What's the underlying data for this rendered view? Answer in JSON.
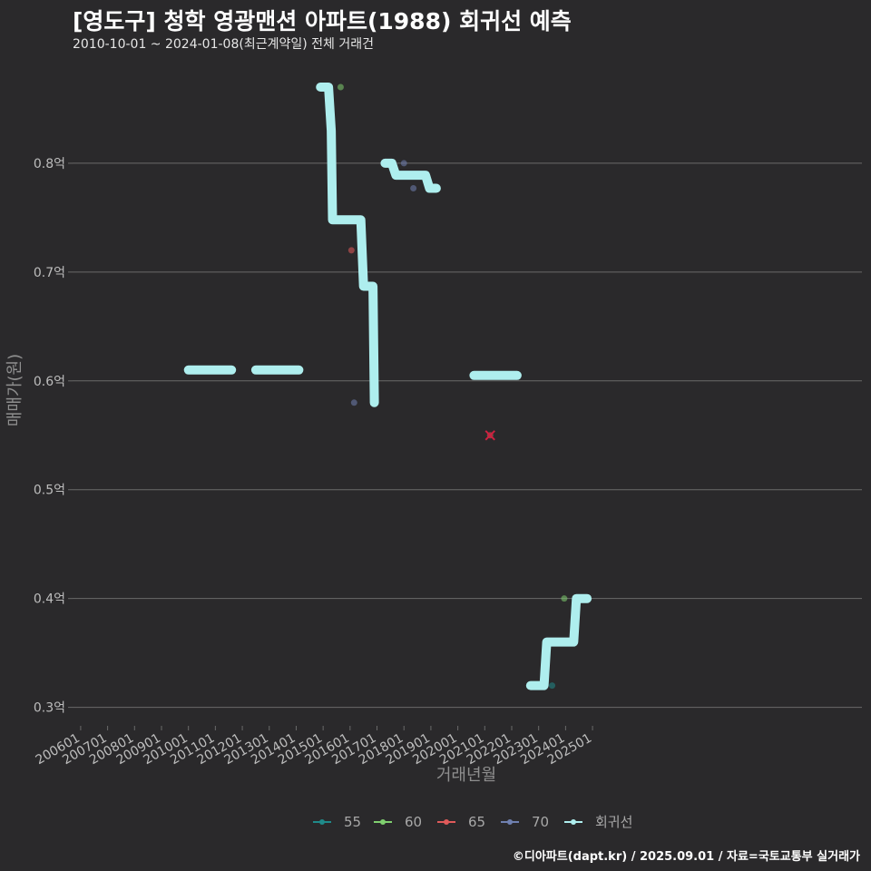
{
  "header": {
    "title": "[영도구] 청학 영광맨션 아파트(1988) 회귀선 예측",
    "subtitle": "2010-10-01 ~ 2024-01-08(최근계약일) 전체 거래건"
  },
  "caption": "©디아파트(dapt.kr) / 2025.09.01 / 자료=국토교통부 실거래가",
  "colors": {
    "background": "#2a292b",
    "grid": "#6a6a6a",
    "regression": "#aeeeee",
    "s55": "#1f8a8a",
    "s60": "#7fcf6f",
    "s65": "#e05a5a",
    "s70": "#6f80b0"
  },
  "chart_data": {
    "type": "line",
    "title": "[영도구] 청학 영광맨션 아파트(1988) 회귀선 예측",
    "subtitle": "2010-10-01 ~ 2024-01-08(최근계약일) 전체 거래건",
    "xlabel": "거래년월",
    "ylabel": "매매가(원)",
    "x_tick_labels": [
      "200601",
      "200701",
      "200801",
      "200901",
      "201001",
      "201101",
      "201201",
      "201301",
      "201401",
      "201501",
      "201601",
      "201701",
      "201801",
      "201901",
      "202001",
      "202101",
      "202201",
      "202301",
      "202401",
      "202501"
    ],
    "y_tick_labels": [
      "0.3억",
      "0.4억",
      "0.5억",
      "0.6억",
      "0.7억",
      "0.8억"
    ],
    "y_ticks": [
      0.3,
      0.4,
      0.5,
      0.6,
      0.7,
      0.8
    ],
    "xlim": [
      2005.7,
      2035.0
    ],
    "ylim": [
      0.283,
      0.9
    ],
    "legend": [
      "55",
      "60",
      "65",
      "70",
      "회귀선"
    ],
    "legend_position": "bottom",
    "grid": "horizontal",
    "series": [
      {
        "name": "55",
        "points": [
          {
            "x": 2023.5,
            "y": 0.32
          }
        ]
      },
      {
        "name": "60",
        "points": [
          {
            "x": 2015.65,
            "y": 0.87
          },
          {
            "x": 2023.95,
            "y": 0.4
          }
        ]
      },
      {
        "name": "65",
        "points": [
          {
            "x": 2016.05,
            "y": 0.72
          },
          {
            "x": 2021.2,
            "y": 0.55,
            "note": "x-marked"
          }
        ]
      },
      {
        "name": "70",
        "points": [
          {
            "x": 2016.15,
            "y": 0.58
          },
          {
            "x": 2018.0,
            "y": 0.8
          },
          {
            "x": 2018.35,
            "y": 0.777
          }
        ]
      }
    ],
    "regression_segments": [
      [
        [
          2010.0,
          0.61
        ],
        [
          2011.6,
          0.61
        ]
      ],
      [
        [
          2012.5,
          0.61
        ],
        [
          2014.1,
          0.61
        ]
      ],
      [
        [
          2014.9,
          0.87
        ],
        [
          2015.2,
          0.87
        ],
        [
          2015.3,
          0.83
        ],
        [
          2015.35,
          0.748
        ],
        [
          2016.4,
          0.748
        ],
        [
          2016.5,
          0.687
        ],
        [
          2016.85,
          0.687
        ],
        [
          2016.9,
          0.58
        ]
      ],
      [
        [
          2017.3,
          0.8
        ],
        [
          2017.55,
          0.8
        ],
        [
          2017.7,
          0.789
        ],
        [
          2018.8,
          0.789
        ],
        [
          2018.95,
          0.777
        ],
        [
          2019.2,
          0.777
        ]
      ],
      [
        [
          2020.6,
          0.605
        ],
        [
          2022.2,
          0.605
        ]
      ],
      [
        [
          2022.7,
          0.32
        ],
        [
          2023.2,
          0.32
        ],
        [
          2023.3,
          0.36
        ],
        [
          2024.3,
          0.36
        ],
        [
          2024.4,
          0.4
        ],
        [
          2024.8,
          0.4
        ]
      ]
    ]
  }
}
